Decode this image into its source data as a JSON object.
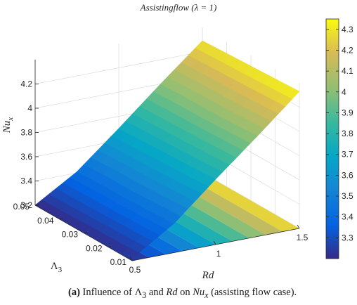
{
  "chart_data": {
    "type": "surface",
    "title": "Assistingflow (λ = 1)",
    "xlabel": "Rd",
    "ylabel": "Λ3",
    "zlabel": "Nux",
    "x": [
      0.5,
      0.75,
      1.0,
      1.25,
      1.5
    ],
    "y": [
      0.01,
      0.02,
      0.03,
      0.04,
      0.05
    ],
    "z": [
      [
        3.22,
        3.44,
        3.74,
        4.03,
        4.33
      ],
      [
        3.21,
        3.43,
        3.73,
        4.02,
        4.32
      ],
      [
        3.21,
        3.42,
        3.72,
        4.01,
        4.31
      ],
      [
        3.2,
        3.42,
        3.71,
        4.01,
        4.3
      ],
      [
        3.2,
        3.41,
        3.7,
        4.0,
        4.29
      ]
    ],
    "xlim": [
      0.5,
      1.5
    ],
    "ylim": [
      0.01,
      0.05
    ],
    "zlim": [
      3.2,
      4.4
    ],
    "x_ticks": [
      "0.5",
      "1",
      "1.5"
    ],
    "y_ticks": [
      "0.01",
      "0.02",
      "0.03",
      "0.04",
      "0.05"
    ],
    "z_ticks": [
      "3.2",
      "3.4",
      "3.6",
      "3.8",
      "4",
      "4.2"
    ],
    "colormap": "parula",
    "colorbar": {
      "range": [
        3.2,
        4.35
      ],
      "ticks": [
        "3.3",
        "3.4",
        "3.5",
        "3.6",
        "3.7",
        "3.8",
        "3.9",
        "4",
        "4.1",
        "4.2",
        "4.3"
      ]
    },
    "grid": true,
    "floor_contour": true
  },
  "caption": {
    "tag": "(a)",
    "text1": " Influence of ",
    "sym1": "Λ",
    "sub1": "3",
    "text2": " and ",
    "sym2": "Rd",
    "text3": " on ",
    "sym3": "Nu",
    "sub3": "x",
    "text4": " (assisting flow case)."
  }
}
